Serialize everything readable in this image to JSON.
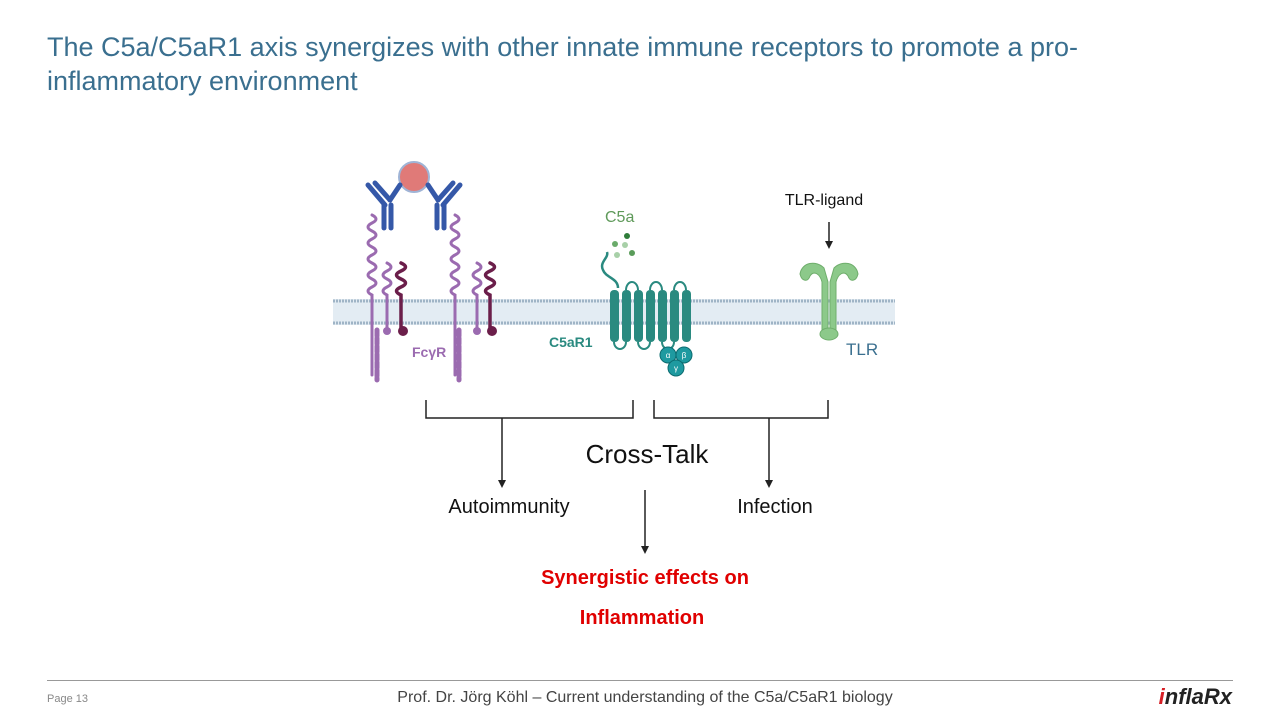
{
  "slide": {
    "title": "The C5a/C5aR1 axis synergizes with other innate immune receptors to promote  a pro-inflammatory environment"
  },
  "diagram": {
    "labels": {
      "fcyr": "FcγR",
      "c5a": "C5a",
      "c5ar1": "C5aR1",
      "tlr_ligand": "TLR-ligand",
      "tlr": "TLR",
      "alpha": "α",
      "beta": "β",
      "gamma": "γ"
    },
    "cross_talk": "Cross-Talk",
    "autoimmunity": "Autoimmunity",
    "infection": "Infection",
    "outcome_line1": "Synergistic effects on",
    "outcome_line2": "Inflammation",
    "colors": {
      "title": "#3a6f8f",
      "outcome": "#e00000",
      "c5ar1": "#2a8a80",
      "tlr": "#8cc98a",
      "fcyr": "#9b6bb0",
      "fcyr_dark": "#6b1e4a",
      "antibody": "#3558a8",
      "antigen": "#e07a78"
    }
  },
  "footer": {
    "page": "Page 13",
    "text": "Prof. Dr. Jörg Köhl – Current understanding of the C5a/C5aR1 biology",
    "logo": "inflaRx"
  }
}
